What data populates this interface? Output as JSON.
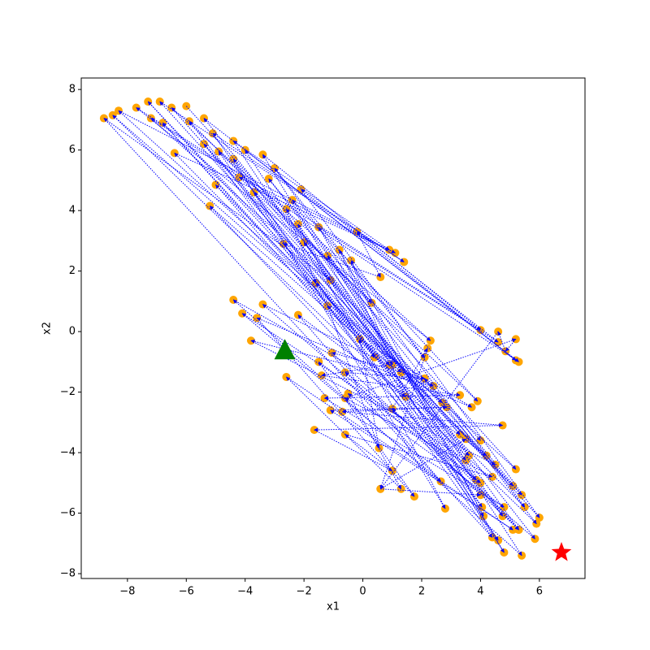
{
  "chart_data": {
    "type": "scatter-path",
    "x_label": "x1",
    "y_label": "x2",
    "xlim": [
      -9.57,
      7.55
    ],
    "ylim": [
      -8.16,
      8.38
    ],
    "xticks": [
      {
        "value": -8,
        "label": "−8"
      },
      {
        "value": -6,
        "label": "−6"
      },
      {
        "value": -4,
        "label": "−4"
      },
      {
        "value": -2,
        "label": "−2"
      },
      0,
      2,
      4,
      6
    ],
    "yticks": [
      {
        "value": -8,
        "label": "−8"
      },
      {
        "value": -6,
        "label": "−6"
      },
      {
        "value": -4,
        "label": "−4"
      },
      {
        "value": -2,
        "label": "−2"
      },
      0,
      2,
      4,
      6,
      8
    ],
    "point_color": "#ffa500",
    "path_color": "#0000ff",
    "start": {
      "x": -2.65,
      "y": -0.65,
      "color": "#008000"
    },
    "end": {
      "x": 6.75,
      "y": -7.3,
      "color": "#ff0000"
    },
    "x": [
      -6,
      5.2,
      -8.3,
      0.9,
      -4.4,
      4.8,
      -3.4,
      4,
      -7.7,
      2.3,
      -6.5,
      3.3,
      -5.4,
      5.2,
      -2.1,
      6,
      -6.9,
      1.4,
      -5.1,
      4.6,
      -4,
      5.3,
      -7.2,
      -1.1,
      -8.8,
      4.4,
      -4.9,
      2.1,
      -3,
      5.5,
      -6.4,
      1.1,
      -4.2,
      3.9,
      -2.4,
      4.75,
      -5.9,
      0.3,
      -3.2,
      5.9,
      -8.5,
      2.7,
      -5.4,
      4.05,
      -2.6,
      -1.6,
      -7.3,
      5.1,
      -3.7,
      0.4,
      -6.8,
      3.6,
      -4.4,
      2.8,
      -2.2,
      5.3,
      -5,
      1.3,
      -1.5,
      4.6,
      -0.2,
      0.6,
      -2.7,
      3.85,
      -1.2,
      5.4,
      -4.4,
      1.45,
      -0.8,
      4.1,
      -0.4,
      1,
      -2,
      5.85,
      -3.4,
      2.4,
      -3.8,
      4.5,
      -1.6,
      3.5,
      -4.1,
      2.65,
      -2.2,
      4.2,
      -1.2,
      0.55,
      -0.1,
      3.7,
      -3.6,
      1.75,
      -1.5,
      4,
      -0.6,
      2.1,
      -1.05,
      5.3,
      -5.2,
      0.9,
      -1.4,
      3.3,
      -1.3,
      4.8,
      -0.5,
      1.3,
      -2.6,
      5.1,
      -1.1,
      2.85,
      -0.7,
      4.75,
      -1.65,
      1,
      -0.6,
      4.4,
      -0.6,
      5.2,
      4.85,
      4.6,
      0.6,
      4,
      1,
      2.2,
      0.6,
      3.5,
      5.4,
      2.1,
      4
    ],
    "y": [
      7.45,
      -4.55,
      7.3,
      2.7,
      6.3,
      -7.3,
      5.85,
      0.05,
      7.4,
      -0.3,
      7.4,
      -3.4,
      7.05,
      -0.95,
      4.7,
      -6.15,
      7.6,
      2.3,
      6.55,
      -6.9,
      6,
      -1,
      7.05,
      1.7,
      7.05,
      -6.8,
      5.95,
      -0.85,
      5.4,
      -5.8,
      5.9,
      2.6,
      5.1,
      -2.3,
      4.35,
      -6.1,
      6.95,
      0.95,
      5.05,
      -6.35,
      7.15,
      -2.35,
      6.2,
      -5.8,
      4.05,
      1.6,
      7.6,
      -5.1,
      4.6,
      -0.85,
      6.9,
      -4.1,
      5.7,
      -5.85,
      3.55,
      -6.55,
      4.85,
      -1.35,
      3.45,
      -0.35,
      3.3,
      1.8,
      2.9,
      -4.9,
      2.5,
      -7.4,
      1.05,
      -2.15,
      2.7,
      -6.1,
      2.35,
      -1.1,
      2.95,
      -6.85,
      0.9,
      -1.8,
      -0.3,
      -4.4,
      1.6,
      -4.25,
      0.6,
      -4.95,
      0.55,
      -4.1,
      0.85,
      -3.85,
      -0.25,
      -2.5,
      0.45,
      -5.45,
      -1,
      -5,
      -1.35,
      -1.55,
      -0.7,
      -6.55,
      4.15,
      -1.1,
      -1.45,
      -2.1,
      -2.2,
      -5.8,
      -2.05,
      -5.2,
      -1.5,
      -6.55,
      -2.6,
      -2.5,
      -2.65,
      -3.1,
      -3.25,
      -4.6,
      -3.4,
      -4.8,
      -2.2,
      -0.25,
      -0.65,
      0,
      -5.2,
      -5.4,
      -2.55,
      -0.55,
      -5.2,
      -3.55,
      -5.4,
      -1.55,
      -3.6
    ]
  }
}
